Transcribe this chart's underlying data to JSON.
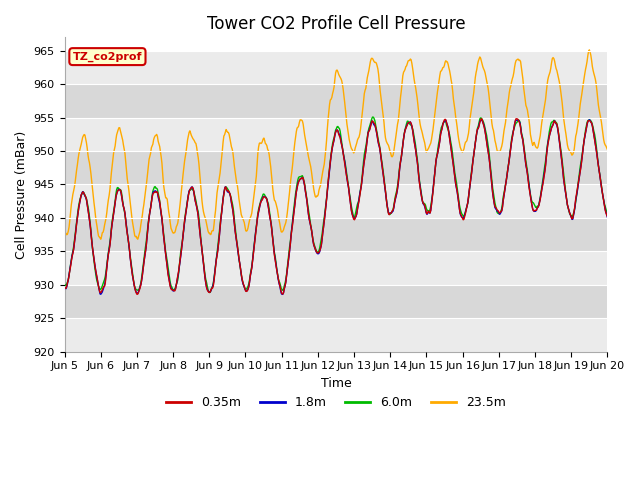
{
  "title": "Tower CO2 Profile Cell Pressure",
  "ylabel": "Cell Pressure (mBar)",
  "xlabel": "Time",
  "ylim": [
    920,
    967
  ],
  "yticks": [
    920,
    925,
    930,
    935,
    940,
    945,
    950,
    955,
    960,
    965
  ],
  "xtick_labels": [
    "Jun 5",
    "Jun 6",
    "Jun 7",
    "Jun 8",
    "Jun 9",
    "Jun 10",
    "Jun 11",
    "Jun 12",
    "Jun 13",
    "Jun 14",
    "Jun 15",
    "Jun 16",
    "Jun 17",
    "Jun 18",
    "Jun 19",
    "Jun 20"
  ],
  "colors": {
    "red": "#cc0000",
    "blue": "#0000cc",
    "green": "#00bb00",
    "orange": "#ffaa00"
  },
  "legend_labels": [
    "0.35m",
    "1.8m",
    "6.0m",
    "23.5m"
  ],
  "annotation_text": "TZ_co2prof",
  "annotation_bg": "#ffffcc",
  "annotation_border": "#cc0000",
  "band_colors": [
    "#ebebeb",
    "#d8d8d8"
  ],
  "title_fontsize": 12,
  "label_fontsize": 9,
  "tick_fontsize": 8
}
